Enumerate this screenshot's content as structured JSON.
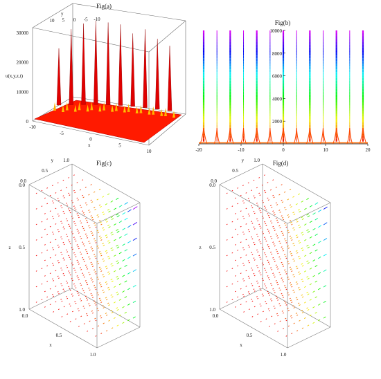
{
  "panels": [
    {
      "title": "Fig(a)",
      "zlabel": "u(x,y,z,t)",
      "xlabel": "x",
      "ylabel": "y",
      "xticks": [
        "-10",
        "-5",
        "0",
        "5",
        "10"
      ],
      "yticks": [
        "10",
        "5",
        "0",
        "-5",
        "-10"
      ],
      "zticks": [
        "0",
        "10000",
        "20000",
        "30000"
      ]
    },
    {
      "title": "Fig(b)",
      "xticks": [
        "-20",
        "-10",
        "0",
        "10",
        "20"
      ],
      "yticks": [
        "2000",
        "4000",
        "6000",
        "8000",
        "10000"
      ]
    },
    {
      "title": "Fig(c)",
      "xlabel": "x",
      "ylabel": "y",
      "zlabel": "z",
      "xticks": [
        "0.0",
        "0.5",
        "1.0"
      ],
      "yticks": [
        "0.0",
        "0.5",
        "1.0"
      ],
      "zticks": [
        "0.0",
        "0.5",
        "1.0"
      ]
    },
    {
      "title": "Fig(d)",
      "xlabel": "x",
      "ylabel": "y",
      "zlabel": "z",
      "xticks": [
        "0.0",
        "0.5",
        "1.0"
      ],
      "yticks": [
        "0.0",
        "0.5",
        "1.0"
      ],
      "zticks": [
        "0.0",
        "0.5",
        "1.0"
      ]
    }
  ],
  "chart_data": [
    {
      "type": "surface",
      "title": "Fig(a)",
      "xlim": [
        -10,
        10
      ],
      "ylim": [
        -10,
        10
      ],
      "zlim": [
        0,
        32000
      ],
      "color": "#ff2200",
      "spikes_x": [
        -9.4,
        -6.3,
        -3.1,
        0,
        3.1,
        6.3,
        9.4
      ],
      "spike_heights": [
        21000,
        28000,
        30000,
        31000,
        30500,
        30000,
        27000,
        29000,
        26000,
        24000
      ]
    },
    {
      "type": "line",
      "title": "Fig(b)",
      "xlim": [
        -20,
        20
      ],
      "ylim": [
        0,
        10000
      ],
      "poles_solid": [
        -18.85,
        -12.57,
        -6.28,
        0,
        6.28,
        12.57,
        18.85
      ],
      "poles_dashed": [
        -15.71,
        -9.42,
        -3.14,
        3.14,
        9.42,
        15.71
      ],
      "colormap": "rainbow"
    },
    {
      "type": "vector-field-3d",
      "title": "Fig(c)",
      "xlim": [
        0,
        1
      ],
      "ylim": [
        0,
        1
      ],
      "zlim": [
        0,
        1
      ],
      "colormap": "rainbow",
      "grid": 8
    },
    {
      "type": "vector-field-3d",
      "title": "Fig(d)",
      "xlim": [
        0,
        1
      ],
      "ylim": [
        0,
        1
      ],
      "zlim": [
        0,
        1
      ],
      "colormap": "rainbow",
      "grid": 8
    }
  ]
}
